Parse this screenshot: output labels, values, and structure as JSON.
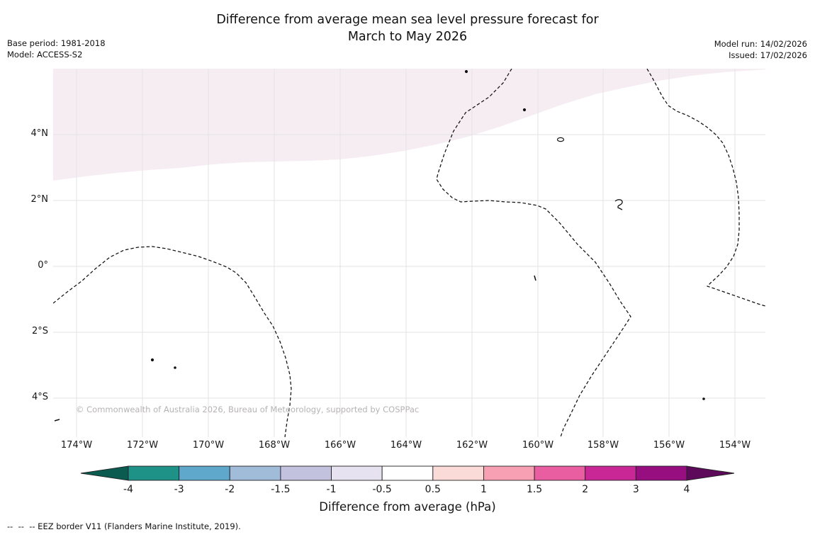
{
  "header": {
    "title_line1": "Difference from average mean sea level pressure forecast for",
    "title_line2": "March to May 2026",
    "base_period": "Base period: 1981-2018",
    "model": "Model: ACCESS-S2",
    "model_run": "Model run: 14/02/2026",
    "issued": "Issued: 17/02/2026"
  },
  "map": {
    "lat_tick_labels": [
      "4°N",
      "2°N",
      "0°",
      "2°S",
      "4°S"
    ],
    "lon_tick_labels": [
      "174°W",
      "172°W",
      "170°W",
      "168°W",
      "166°W",
      "164°W",
      "162°W",
      "160°W",
      "158°W",
      "156°W",
      "154°W"
    ],
    "copyright": "© Commonwealth of Australia 2026, Bureau of Meteorology, supported by COSPPac",
    "shaded_region_color": "#f6edf3",
    "gridline_color": "#e3e3e3",
    "eez_line_color": "#111111"
  },
  "colorbar": {
    "label": "Difference from average (hPa)",
    "tick_labels": [
      "-4",
      "-3",
      "-2",
      "-1.5",
      "-1",
      "-0.5",
      "0.5",
      "1",
      "1.5",
      "2",
      "3",
      "4"
    ],
    "segment_colors": [
      "#1e9287",
      "#5fa7cb",
      "#a1bcd9",
      "#c3c2de",
      "#e6e2ef",
      "#ffffff",
      "#fadbd7",
      "#f8a0b3",
      "#e95da1",
      "#c92795",
      "#970e81"
    ],
    "left_arrow_color": "#0b5b51",
    "right_arrow_color": "#5e0a5b"
  },
  "footer": {
    "eez_dash": "--  --  --",
    "eez_label": " EEZ border V11 (Flanders Marine Institute, 2019)."
  },
  "chart_data": {
    "type": "heatmap",
    "title": "Difference from average mean sea level pressure forecast for March to May 2026",
    "base_period": "1981-2018",
    "model": "ACCESS-S2",
    "model_run_date": "14/02/2026",
    "issued_date": "17/02/2026",
    "x_tick_labels": [
      "174°W",
      "172°W",
      "170°W",
      "168°W",
      "166°W",
      "164°W",
      "162°W",
      "160°W",
      "158°W",
      "156°W",
      "154°W"
    ],
    "y_tick_labels": [
      "4°N",
      "2°N",
      "0°",
      "2°S",
      "4°S"
    ],
    "x_range": [
      "~175°W",
      "~153°W"
    ],
    "y_range": [
      "~6°N",
      "~5.2°S"
    ],
    "grid": true,
    "colorbar": {
      "label": "Difference from average (hPa)",
      "boundaries_hpa": [
        -4,
        -3,
        -2,
        -1.5,
        -1,
        -0.5,
        0.5,
        1,
        1.5,
        2,
        3,
        4
      ],
      "extend": "both"
    },
    "regions": [
      {
        "value_band_hpa": "0.5 to 1 (faint positive anomaly)",
        "description": "Pale pink shaded region across the north of the map, from about 2.7°N at the west edge rising to the top of the map (~6°N) toward the east edge"
      },
      {
        "value_band_hpa": "-0.5 to 0.5 (near average)",
        "description": "White region covering the remainder of the map"
      }
    ],
    "overlays": [
      "Dashed EEZ border lines (western, central and eastern segments)",
      "Small island marks including a ring-shaped atoll near 160°W 4°N and a hook-shaped island near 158°W 2°N"
    ]
  }
}
